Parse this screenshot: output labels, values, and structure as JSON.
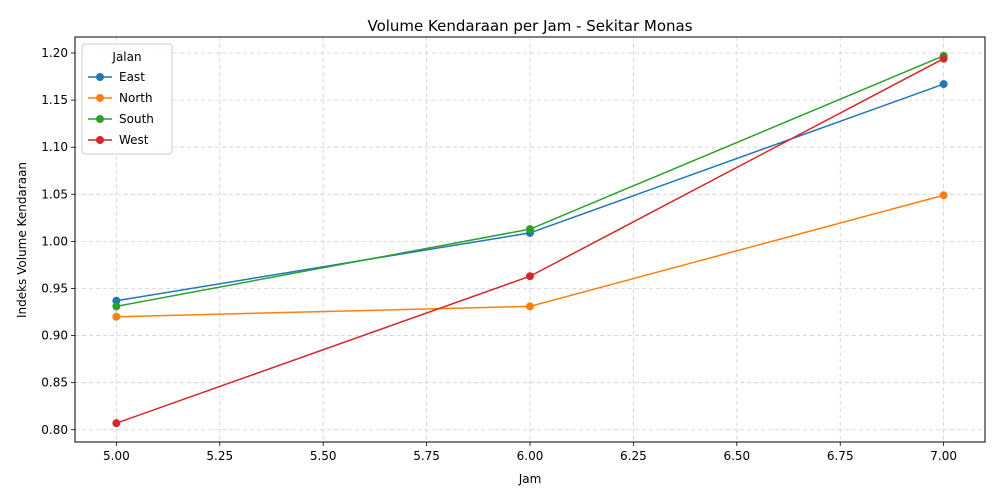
{
  "chart_data": {
    "type": "line",
    "title": "Volume Kendaraan per Jam - Sekitar Monas",
    "xlabel": "Jam",
    "ylabel": "Indeks Volume Kendaraan",
    "x": [
      5.0,
      6.0,
      7.0
    ],
    "xlim": [
      4.9,
      7.1
    ],
    "ylim": [
      0.787,
      1.217
    ],
    "xticks": [
      "5.00",
      "5.25",
      "5.50",
      "5.75",
      "6.00",
      "6.25",
      "6.50",
      "6.75",
      "7.00"
    ],
    "yticks": [
      "0.80",
      "0.85",
      "0.90",
      "0.95",
      "1.00",
      "1.05",
      "1.10",
      "1.15",
      "1.20"
    ],
    "grid": true,
    "legend_title": "Jalan",
    "legend_position": "top-left",
    "series": [
      {
        "name": "East",
        "color": "#1f77b4",
        "values": [
          0.937,
          1.009,
          1.167
        ]
      },
      {
        "name": "North",
        "color": "#ff7f0e",
        "values": [
          0.92,
          0.931,
          1.049
        ]
      },
      {
        "name": "South",
        "color": "#2ca02c",
        "values": [
          0.931,
          1.013,
          1.197
        ]
      },
      {
        "name": "West",
        "color": "#d62728",
        "values": [
          0.807,
          0.963,
          1.194
        ]
      }
    ]
  }
}
